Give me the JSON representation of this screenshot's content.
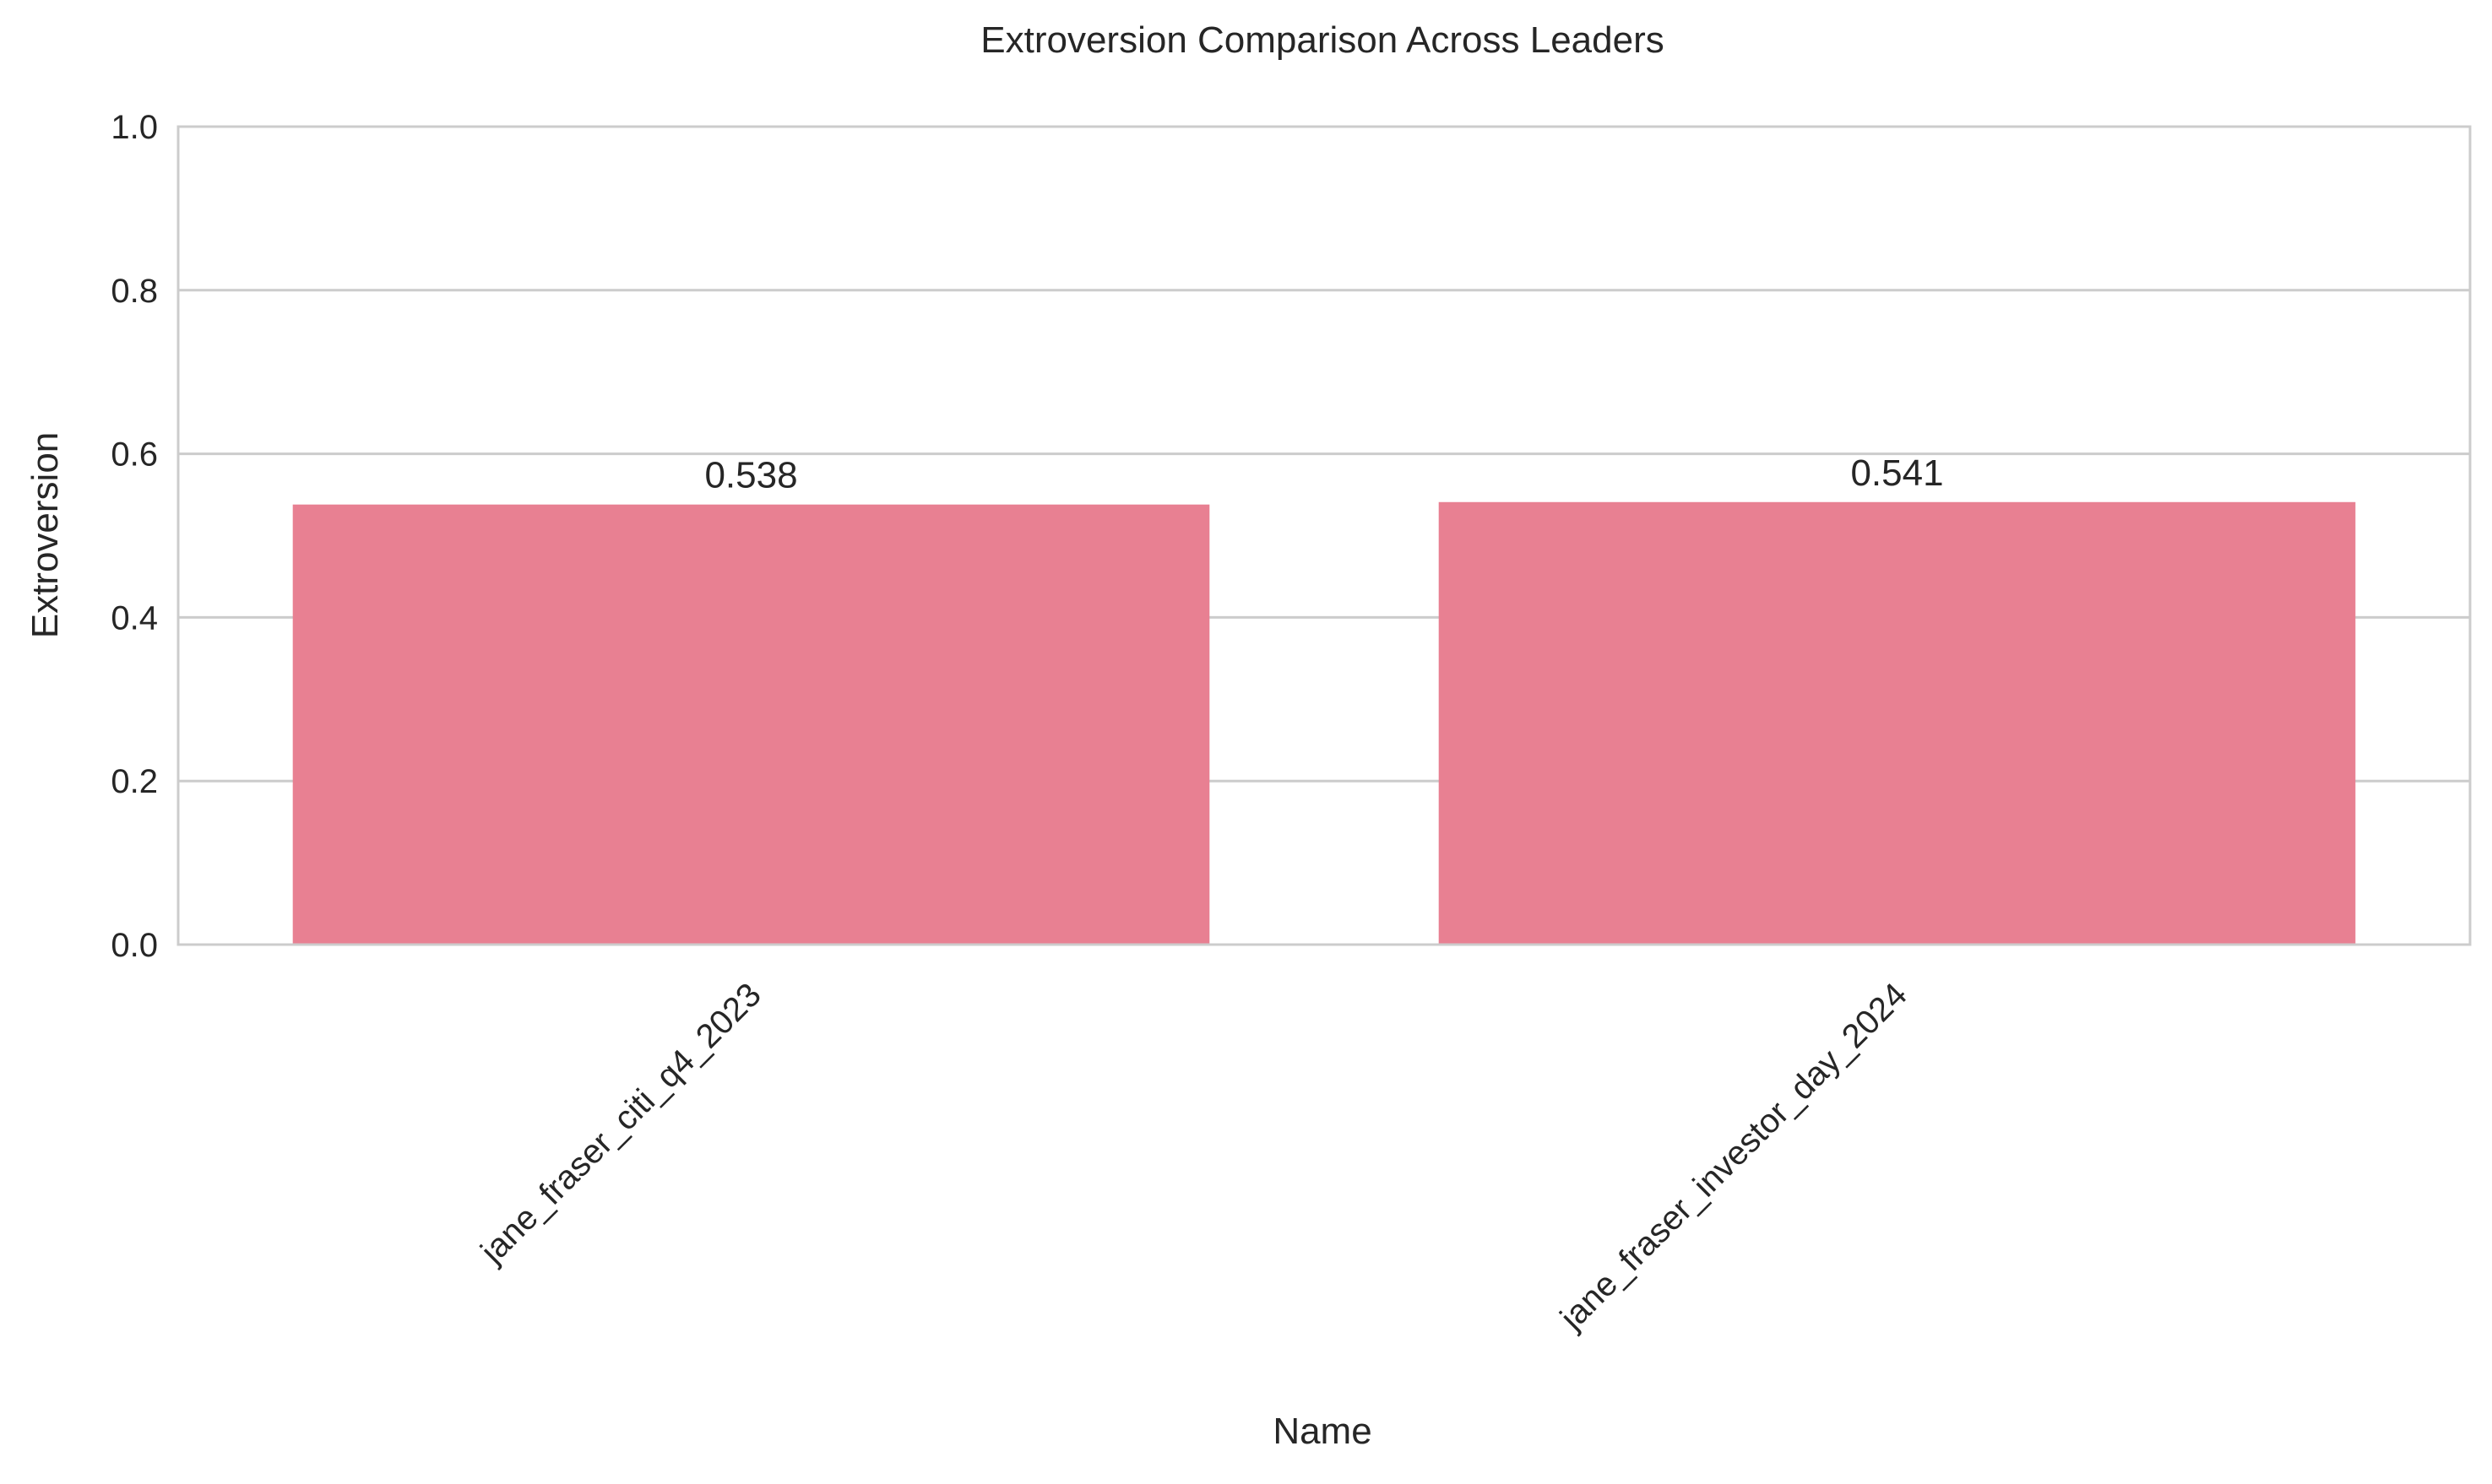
{
  "chart_data": {
    "type": "bar",
    "title": "Extroversion Comparison Across Leaders",
    "xlabel": "Name",
    "ylabel": "Extroversion",
    "categories": [
      "jane_fraser_citi_q4_2023",
      "jane_fraser_investor_day_2024"
    ],
    "values": [
      0.538,
      0.541
    ],
    "value_labels": [
      "0.538",
      "0.541"
    ],
    "ylim": [
      0,
      1.0
    ],
    "yticks": [
      0.0,
      0.2,
      0.4,
      0.6,
      0.8,
      1.0
    ],
    "ytick_labels": [
      "0.0",
      "0.2",
      "0.4",
      "0.6",
      "0.8",
      "1.0"
    ],
    "grid": "horizontal",
    "bar_color": "#e88092",
    "grid_color": "#cccccc",
    "spine_color": "#cccccc"
  }
}
